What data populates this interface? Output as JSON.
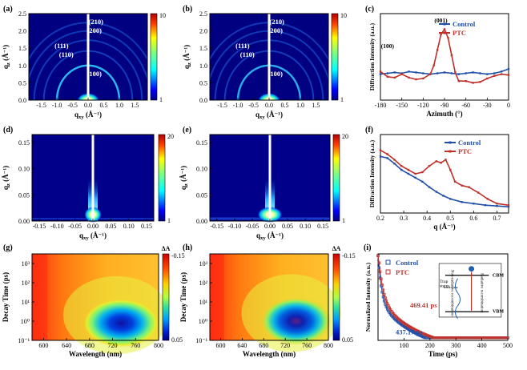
{
  "chart_data": [
    {
      "panel": "(a)",
      "type": "heatmap",
      "xlabel": "q_xy (Å⁻¹)",
      "ylabel": "q_z (Å⁻¹)",
      "xlim": [
        -1.9,
        1.9
      ],
      "ylim": [
        0,
        2.5
      ],
      "xticks": [
        "-1.5",
        "-1.0",
        "-0.5",
        "0.0",
        "0.5",
        "1.0",
        "1.5"
      ],
      "xtick_values": [
        -1.5,
        -1.0,
        -0.5,
        0.0,
        0.5,
        1.0,
        1.5
      ],
      "yticks": [
        "0.0",
        "0.5",
        "1.0",
        "1.5",
        "2.0",
        "2.5"
      ],
      "ytick_values": [
        0,
        0.5,
        1.0,
        1.5,
        2.0,
        2.5
      ],
      "colorbar": {
        "min_label": "1",
        "max_label": "10"
      },
      "rings_q": [
        1.0,
        1.42,
        1.73,
        2.0,
        2.24
      ],
      "ring_strength": [
        0.75,
        0.3,
        0.25,
        0.22,
        0.2
      ],
      "annotations": [
        {
          "text": "(210)",
          "x": 0.25,
          "y": 2.2
        },
        {
          "text": "(200)",
          "x": 0.2,
          "y": 1.95
        },
        {
          "text": "(111)",
          "x": -0.85,
          "y": 1.5
        },
        {
          "text": "(110)",
          "x": -0.7,
          "y": 1.25
        },
        {
          "text": "(100)",
          "x": 0.2,
          "y": 0.7
        }
      ]
    },
    {
      "panel": "(b)",
      "type": "heatmap",
      "xlabel": "q_xy (Å⁻¹)",
      "ylabel": "q_z (Å⁻¹)",
      "xlim": [
        -1.9,
        1.9
      ],
      "ylim": [
        0,
        2.5
      ],
      "xticks": [
        "-1.5",
        "-1.0",
        "-0.5",
        "0.0",
        "0.5",
        "1.0",
        "1.5"
      ],
      "xtick_values": [
        -1.5,
        -1.0,
        -0.5,
        0.0,
        0.5,
        1.0,
        1.5
      ],
      "yticks": [
        "0.0",
        "0.5",
        "1.0",
        "1.5",
        "2.0",
        "2.5"
      ],
      "ytick_values": [
        0,
        0.5,
        1.0,
        1.5,
        2.0,
        2.5
      ],
      "colorbar": {
        "min_label": "1",
        "max_label": "10"
      },
      "rings_q": [
        1.0,
        1.42,
        1.73,
        2.0,
        2.24
      ],
      "ring_strength": [
        0.65,
        0.3,
        0.25,
        0.22,
        0.2
      ],
      "annotations": [
        {
          "text": "(210)",
          "x": 0.25,
          "y": 2.2
        },
        {
          "text": "(200)",
          "x": 0.2,
          "y": 1.95
        },
        {
          "text": "(111)",
          "x": -0.85,
          "y": 1.5
        },
        {
          "text": "(110)",
          "x": -0.7,
          "y": 1.25
        },
        {
          "text": "(100)",
          "x": 0.2,
          "y": 0.7
        }
      ]
    },
    {
      "panel": "(c)",
      "type": "line",
      "xlabel": "Azimuth (°)",
      "ylabel": "Diffraction Intensity (a.u.)",
      "xlim": [
        -180,
        0
      ],
      "ylim": [
        0,
        1
      ],
      "xticks": [
        "-180",
        "-150",
        "-120",
        "-90",
        "-60",
        "-30",
        "0"
      ],
      "xtick_values": [
        -180,
        -150,
        -120,
        -90,
        -60,
        -30,
        0
      ],
      "legend": [
        "Control",
        "PTC"
      ],
      "annotations": [
        {
          "text": "(100)",
          "x": -170,
          "y": 0.6
        },
        {
          "text": "(001)",
          "x": -95,
          "y": 0.9
        }
      ],
      "series": [
        {
          "name": "Control",
          "color": "#1f4fa8",
          "x": [
            -180,
            -170,
            -160,
            -150,
            -140,
            -130,
            -120,
            -110,
            -100,
            -90,
            -80,
            -70,
            -60,
            -50,
            -40,
            -30,
            -20,
            -10,
            0
          ],
          "y": [
            0.3,
            0.31,
            0.32,
            0.31,
            0.33,
            0.32,
            0.31,
            0.3,
            0.31,
            0.32,
            0.31,
            0.3,
            0.31,
            0.32,
            0.31,
            0.3,
            0.31,
            0.33,
            0.36
          ]
        },
        {
          "name": "PTC",
          "color": "#c0302a",
          "x": [
            -180,
            -170,
            -160,
            -150,
            -140,
            -130,
            -120,
            -110,
            -105,
            -100,
            -95,
            -90,
            -85,
            -80,
            -75,
            -70,
            -60,
            -50,
            -40,
            -30,
            -20,
            -10,
            0
          ],
          "y": [
            0.33,
            0.27,
            0.26,
            0.3,
            0.26,
            0.24,
            0.25,
            0.3,
            0.4,
            0.58,
            0.76,
            0.82,
            0.72,
            0.52,
            0.32,
            0.22,
            0.22,
            0.2,
            0.21,
            0.25,
            0.28,
            0.3,
            0.29
          ]
        }
      ]
    },
    {
      "panel": "(d)",
      "type": "heatmap",
      "xlabel": "q_xy (Å⁻¹)",
      "ylabel": "q_z (Å⁻¹)",
      "xlim": [
        -0.17,
        0.17
      ],
      "ylim": [
        0,
        0.165
      ],
      "xticks": [
        "-0.15",
        "-0.10",
        "-0.05",
        "0.00",
        "0.05",
        "0.10",
        "0.15"
      ],
      "xtick_values": [
        -0.15,
        -0.1,
        -0.05,
        0.0,
        0.05,
        0.1,
        0.15
      ],
      "yticks": [
        "0.00",
        "0.05",
        "0.10",
        "0.15"
      ],
      "ytick_values": [
        0,
        0.05,
        0.1,
        0.15
      ],
      "colorbar": {
        "min_label": "1",
        "max_label": "20"
      }
    },
    {
      "panel": "(e)",
      "type": "heatmap",
      "xlabel": "q_xy (Å⁻¹)",
      "ylabel": "q_z (Å⁻¹)",
      "xlim": [
        -0.17,
        0.17
      ],
      "ylim": [
        0,
        0.165
      ],
      "xticks": [
        "-0.15",
        "-0.10",
        "-0.05",
        "0.00",
        "0.05",
        "0.10",
        "0.15"
      ],
      "xtick_values": [
        -0.15,
        -0.1,
        -0.05,
        0.0,
        0.05,
        0.1,
        0.15
      ],
      "yticks": [
        "0.00",
        "0.05",
        "0.10",
        "0.15"
      ],
      "ytick_values": [
        0,
        0.05,
        0.1,
        0.15
      ],
      "colorbar": {
        "min_label": "1",
        "max_label": "20"
      }
    },
    {
      "panel": "(f)",
      "type": "line",
      "xlabel": "q (Å⁻¹)",
      "ylabel": "Diffraction Intensity (a.u.)",
      "xlim": [
        0.2,
        0.75
      ],
      "ylim": [
        0,
        1
      ],
      "xticks": [
        "0.2",
        "0.3",
        "0.4",
        "0.5",
        "0.6",
        "0.7"
      ],
      "xtick_values": [
        0.2,
        0.3,
        0.4,
        0.5,
        0.6,
        0.7
      ],
      "legend": [
        "Control",
        "PTC"
      ],
      "series": [
        {
          "name": "Control",
          "color": "#1f4fa8",
          "x": [
            0.2,
            0.23,
            0.26,
            0.29,
            0.32,
            0.35,
            0.38,
            0.41,
            0.44,
            0.47,
            0.5,
            0.55,
            0.6,
            0.65,
            0.7,
            0.75
          ],
          "y": [
            0.72,
            0.7,
            0.63,
            0.55,
            0.5,
            0.45,
            0.4,
            0.33,
            0.27,
            0.22,
            0.18,
            0.14,
            0.12,
            0.1,
            0.09,
            0.08
          ]
        },
        {
          "name": "PTC",
          "color": "#c0302a",
          "x": [
            0.2,
            0.23,
            0.26,
            0.29,
            0.32,
            0.35,
            0.38,
            0.41,
            0.44,
            0.46,
            0.48,
            0.5,
            0.52,
            0.55,
            0.58,
            0.62,
            0.66,
            0.7,
            0.75
          ],
          "y": [
            0.8,
            0.75,
            0.68,
            0.6,
            0.55,
            0.5,
            0.52,
            0.6,
            0.66,
            0.64,
            0.68,
            0.55,
            0.4,
            0.35,
            0.33,
            0.26,
            0.18,
            0.12,
            0.1
          ]
        }
      ]
    },
    {
      "panel": "(g)",
      "type": "heatmap",
      "xlabel": "Wavelength (nm)",
      "ylabel": "Decay Time (ps)",
      "xlim": [
        580,
        800
      ],
      "ylim_log10": [
        -1,
        3.5
      ],
      "xticks": [
        "600",
        "640",
        "680",
        "720",
        "760",
        "800"
      ],
      "xtick_values": [
        600,
        640,
        680,
        720,
        760,
        800
      ],
      "yticks": [
        "10⁻¹",
        "10⁰",
        "10¹",
        "10²",
        "10³"
      ],
      "ytick_log_values": [
        -1,
        0,
        1,
        2,
        3
      ],
      "colorbar": {
        "title": "ΔA",
        "max_label": "-0.15",
        "min_label": "0.05"
      },
      "bleach_center": {
        "wavelength": 735,
        "log_time": -0.1
      }
    },
    {
      "panel": "(h)",
      "type": "heatmap",
      "xlabel": "Wavelength (nm)",
      "ylabel": "Decay Time (ps)",
      "xlim": [
        580,
        800
      ],
      "ylim_log10": [
        -1,
        3.5
      ],
      "xticks": [
        "600",
        "640",
        "680",
        "720",
        "760",
        "800"
      ],
      "xtick_values": [
        600,
        640,
        680,
        720,
        760,
        800
      ],
      "yticks": [
        "10⁻¹",
        "10⁰",
        "10¹",
        "10²",
        "10³"
      ],
      "ytick_log_values": [
        -1,
        0,
        1,
        2,
        3
      ],
      "colorbar": {
        "title": "ΔA",
        "max_label": "-0.15",
        "min_label": "0.05"
      },
      "bleach_center": {
        "wavelength": 740,
        "log_time": 0.0
      }
    },
    {
      "panel": "(i)",
      "type": "scatter",
      "xlabel": "Time (ps)",
      "ylabel": "Normalized Intensity (a.u.)",
      "xlim": [
        0,
        500
      ],
      "ylim": [
        0,
        1
      ],
      "xticks": [
        "100",
        "200",
        "300",
        "400",
        "500"
      ],
      "xtick_values": [
        100,
        200,
        300,
        400,
        500
      ],
      "legend": [
        "Control",
        "PTC"
      ],
      "annotations": [
        {
          "text": "469.41 ps",
          "color": "#c0302a"
        },
        {
          "text": "437.17 ps",
          "color": "#1f4fa8"
        }
      ],
      "inset_labels": [
        "CBM",
        "VBM",
        "Trap states",
        "Non-radiative recombination",
        "Radiative recombination"
      ],
      "series": [
        {
          "name": "Control",
          "color": "#1f4fa8",
          "tau": 437.17
        },
        {
          "name": "PTC",
          "color": "#c0302a",
          "tau": 469.41
        }
      ]
    }
  ]
}
